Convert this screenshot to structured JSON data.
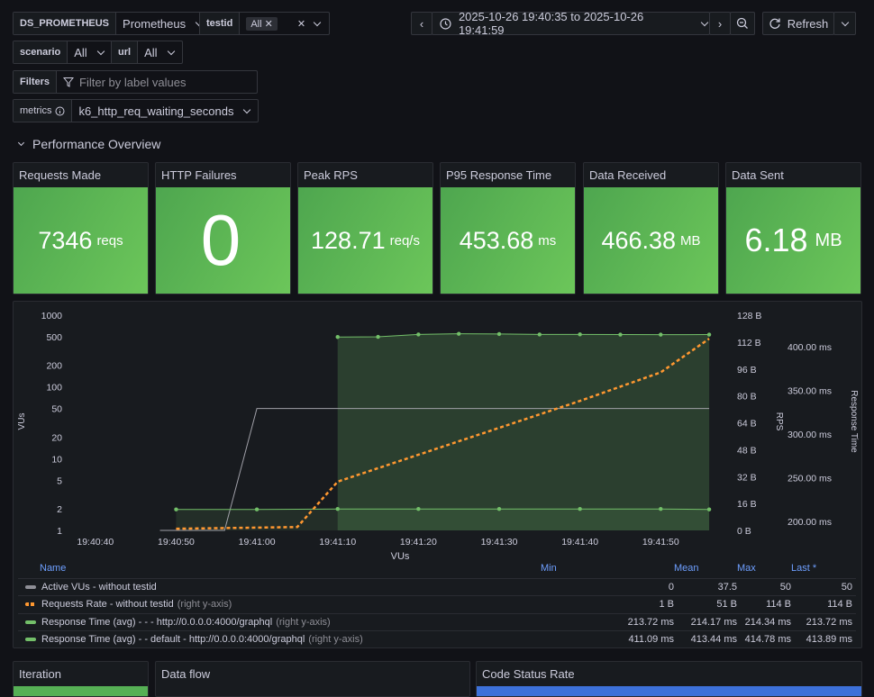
{
  "variables": {
    "datasource": {
      "label": "DS_PROMETHEUS",
      "value": "Prometheus"
    },
    "testid": {
      "label": "testid",
      "value": "All"
    },
    "scenario": {
      "label": "scenario",
      "value": "All"
    },
    "url": {
      "label": "url",
      "value": "All"
    },
    "filters": {
      "label": "Filters",
      "placeholder": "Filter by label values"
    },
    "metrics": {
      "label": "metrics",
      "value": "k6_http_req_waiting_seconds"
    }
  },
  "toolbar": {
    "time_range": "2025-10-26 19:40:35 to 2025-10-26 19:41:59",
    "refresh_label": "Refresh"
  },
  "row": {
    "title": "Performance Overview"
  },
  "stats": [
    {
      "title": "Requests Made",
      "value": "7346",
      "unit": "reqs"
    },
    {
      "title": "HTTP Failures",
      "value": "0",
      "unit": ""
    },
    {
      "title": "Peak RPS",
      "value": "128.71",
      "unit": "req/s"
    },
    {
      "title": "P95 Response Time",
      "value": "453.68",
      "unit": "ms"
    },
    {
      "title": "Data Received",
      "value": "466.38",
      "unit": "MB"
    },
    {
      "title": "Data Sent",
      "value": "6.18",
      "unit": "MB"
    }
  ],
  "chart_data": {
    "type": "line",
    "xlabel": "VUs",
    "x_ticks": [
      "19:40:40",
      "19:40:50",
      "19:41:00",
      "19:41:10",
      "19:41:20",
      "19:41:30",
      "19:41:40",
      "19:41:50"
    ],
    "y_left": {
      "label": "VUs",
      "scale": "log",
      "ticks": [
        "1000",
        "500",
        "200",
        "100",
        "50",
        "20",
        "10",
        "5",
        "2",
        "1"
      ]
    },
    "y_right_rps": {
      "label": "RPS",
      "ticks": [
        "128 B",
        "112 B",
        "96 B",
        "80 B",
        "64 B",
        "48 B",
        "32 B",
        "16 B",
        "0 B"
      ]
    },
    "y_right_time": {
      "label": "Response Time",
      "ticks": [
        "400.00 ms",
        "350.00 ms",
        "300.00 ms",
        "250.00 ms",
        "200.00 ms"
      ]
    },
    "series": [
      {
        "name": "Active VUs - without testid",
        "color": "#a0a0a8",
        "points": [
          [
            "19:40:48",
            1
          ],
          [
            "19:40:56",
            1
          ],
          [
            "19:41:00",
            50
          ],
          [
            "19:41:56",
            50
          ]
        ]
      },
      {
        "name": "Requests Rate - without testid",
        "color": "#ff9830",
        "points": [
          [
            "19:40:50",
            1
          ],
          [
            "19:41:05",
            2
          ],
          [
            "19:41:10",
            29
          ],
          [
            "19:41:20",
            45
          ],
          [
            "19:41:30",
            61
          ],
          [
            "19:41:40",
            77
          ],
          [
            "19:41:50",
            94
          ],
          [
            "19:41:56",
            114
          ]
        ]
      },
      {
        "name": "Response Time (avg) - - - http://0.0.0.0:4000/graphql",
        "color": "#73bf69",
        "points": [
          [
            "19:40:50",
            213.72
          ],
          [
            "19:41:00",
            213.72
          ],
          [
            "19:41:10",
            214.2
          ],
          [
            "19:41:20",
            214.2
          ],
          [
            "19:41:30",
            214.2
          ],
          [
            "19:41:40",
            214.2
          ],
          [
            "19:41:50",
            214.2
          ],
          [
            "19:41:56",
            213.72
          ]
        ]
      },
      {
        "name": "Response Time (avg) - - default - http://0.0.0.0:4000/graphql",
        "color": "#73bf69",
        "points": [
          [
            "19:41:10",
            411.09
          ],
          [
            "19:41:15",
            411.3
          ],
          [
            "19:41:20",
            414.0
          ],
          [
            "19:41:25",
            414.78
          ],
          [
            "19:41:30",
            414.5
          ],
          [
            "19:41:35",
            414.0
          ],
          [
            "19:41:40",
            414.1
          ],
          [
            "19:41:45",
            413.9
          ],
          [
            "19:41:50",
            413.8
          ],
          [
            "19:41:56",
            413.89
          ]
        ]
      }
    ]
  },
  "legend": {
    "headers": {
      "name": "Name",
      "min": "Min",
      "mean": "Mean",
      "max": "Max",
      "last": "Last *"
    },
    "rows": [
      {
        "name": "Active VUs - without testid",
        "suffix": "",
        "color": "#8e8e96",
        "min": "0",
        "mean": "37.5",
        "max": "50",
        "last": "50"
      },
      {
        "name": "Requests Rate - without testid",
        "suffix": "(right y-axis)",
        "color": "#ff9830",
        "min": "1 B",
        "mean": "51 B",
        "max": "114 B",
        "last": "114 B"
      },
      {
        "name": "Response Time (avg) - - - http://0.0.0.0:4000/graphql",
        "suffix": "(right y-axis)",
        "color": "#73bf69",
        "min": "213.72 ms",
        "mean": "214.17 ms",
        "max": "214.34 ms",
        "last": "213.72 ms"
      },
      {
        "name": "Response Time (avg) - - default - http://0.0.0.0:4000/graphql",
        "suffix": "(right y-axis)",
        "color": "#73bf69",
        "min": "411.09 ms",
        "mean": "413.44 ms",
        "max": "414.78 ms",
        "last": "413.89 ms"
      }
    ]
  },
  "bottom_panels": [
    {
      "title": "Iteration"
    },
    {
      "title": "Data flow"
    },
    {
      "title": "Code Status Rate"
    }
  ]
}
